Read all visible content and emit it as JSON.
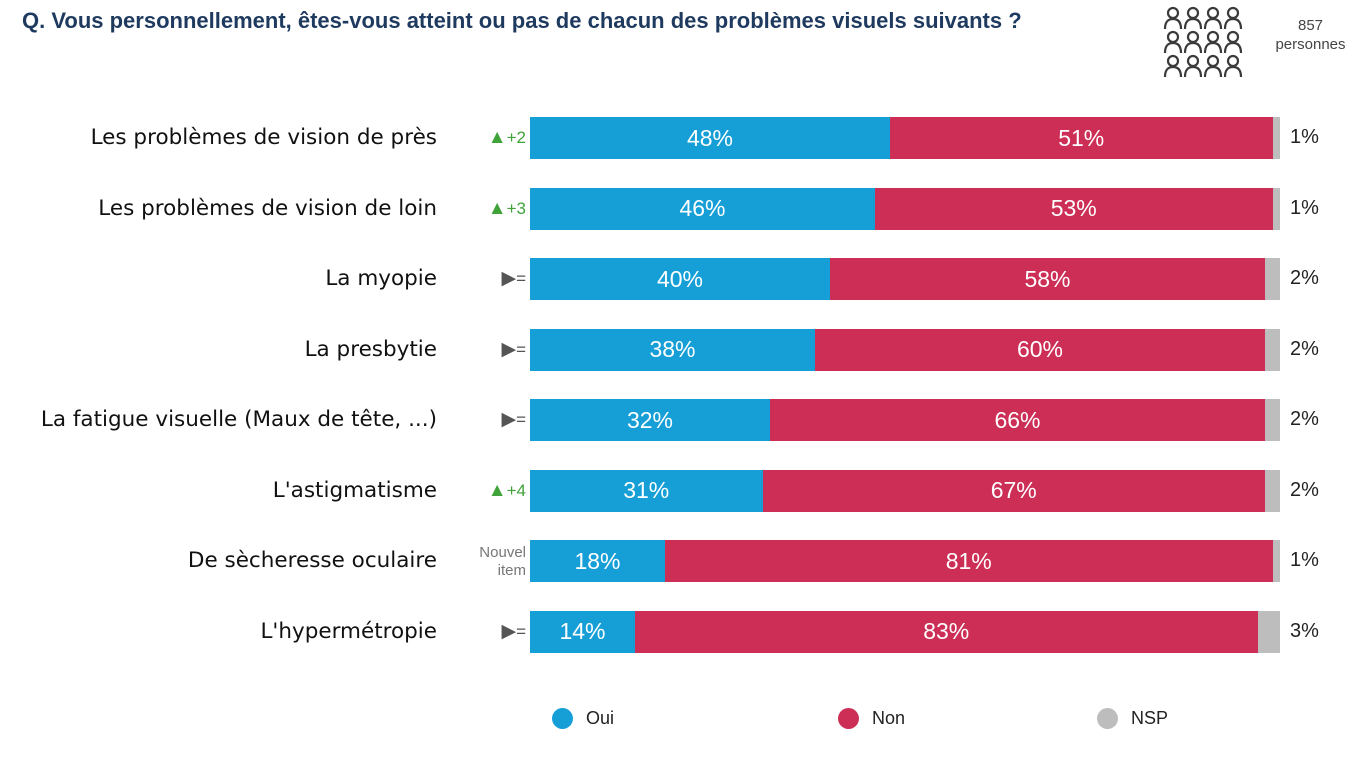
{
  "title": "Q. Vous personnellement, êtes-vous atteint ou pas de chacun des problèmes visuels suivants ?",
  "sample": {
    "count": "857",
    "unit": "personnes"
  },
  "colors": {
    "oui": "#169fd7",
    "non": "#cc2e56",
    "nsp": "#bdbdbd",
    "up": "#3fa33a",
    "same": "#555555"
  },
  "legend": [
    {
      "key": "oui",
      "label": "Oui"
    },
    {
      "key": "non",
      "label": "Non"
    },
    {
      "key": "nsp",
      "label": "NSP"
    }
  ],
  "chart_data": {
    "type": "bar",
    "stacked": true,
    "orientation": "horizontal",
    "title": "Q. Vous personnellement, êtes-vous atteint ou pas de chacun des problèmes visuels suivants ?",
    "categories": [
      "Les problèmes de vision de près",
      "Les problèmes de vision de loin",
      "La myopie",
      "La presbytie",
      "La fatigue visuelle (Maux de tête, ...)",
      "L'astigmatisme",
      "De sècheresse oculaire",
      "L'hypermétropie"
    ],
    "series": [
      {
        "name": "Oui",
        "values": [
          48,
          46,
          40,
          38,
          32,
          31,
          18,
          14
        ]
      },
      {
        "name": "Non",
        "values": [
          51,
          53,
          58,
          60,
          66,
          67,
          81,
          83
        ]
      },
      {
        "name": "NSP",
        "values": [
          1,
          1,
          2,
          2,
          2,
          2,
          1,
          3
        ]
      }
    ],
    "value_labels": {
      "oui": [
        "48%",
        "46%",
        "40%",
        "38%",
        "32%",
        "31%",
        "18%",
        "14%"
      ],
      "non": [
        "51%",
        "53%",
        "58%",
        "60%",
        "66%",
        "67%",
        "81%",
        "83%"
      ],
      "nsp": [
        "1%",
        "1%",
        "2%",
        "2%",
        "2%",
        "2%",
        "1%",
        "3%"
      ]
    },
    "trends": [
      {
        "type": "up",
        "symbol": "▲",
        "text": "+2"
      },
      {
        "type": "up",
        "symbol": "▲",
        "text": "+3"
      },
      {
        "type": "same",
        "symbol": "▶",
        "text": "="
      },
      {
        "type": "same",
        "symbol": "▶",
        "text": "="
      },
      {
        "type": "same",
        "symbol": "▶",
        "text": "="
      },
      {
        "type": "up",
        "symbol": "▲",
        "text": "+4"
      },
      {
        "type": "new",
        "symbol": "",
        "text": "Nouvel item"
      },
      {
        "type": "same",
        "symbol": "▶",
        "text": "="
      }
    ],
    "xlim": [
      0,
      100
    ],
    "legend_position": "bottom"
  }
}
